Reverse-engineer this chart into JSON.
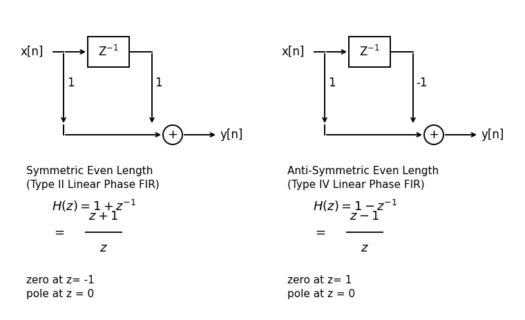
{
  "bg_color": "#ffffff",
  "left": {
    "xn": "x[n]",
    "box": "Z$^{-1}$",
    "coeff_left": "1",
    "coeff_right": "1",
    "yn": "y[n]",
    "title1": "Symmetric Even Length",
    "title2": "(Type II Linear Phase FIR)",
    "eq1": "$H(z) = 1 + z^{-1}$",
    "eq2_num": "$z + 1$",
    "eq2_den": "$z$",
    "zero_txt": "zero at z= -1",
    "pole_txt": "pole at z = 0"
  },
  "right": {
    "xn": "x[n]",
    "box": "Z$^{-1}$",
    "coeff_left": "1",
    "coeff_right": "-1",
    "yn": "y[n]",
    "title1": "Anti-Symmetric Even Length",
    "title2": "(Type IV Linear Phase FIR)",
    "eq1": "$H(z) = 1 - z^{-1}$",
    "eq2_num": "$z - 1$",
    "eq2_den": "$z$",
    "zero_txt": "zero at z= 1",
    "pole_txt": "pole at z = 0"
  },
  "lw": 1.4,
  "arrow_scale": 10,
  "fontsize_label": 12,
  "fontsize_title": 11,
  "fontsize_eq": 13,
  "fontsize_coeff": 12,
  "fontsize_zp": 11
}
